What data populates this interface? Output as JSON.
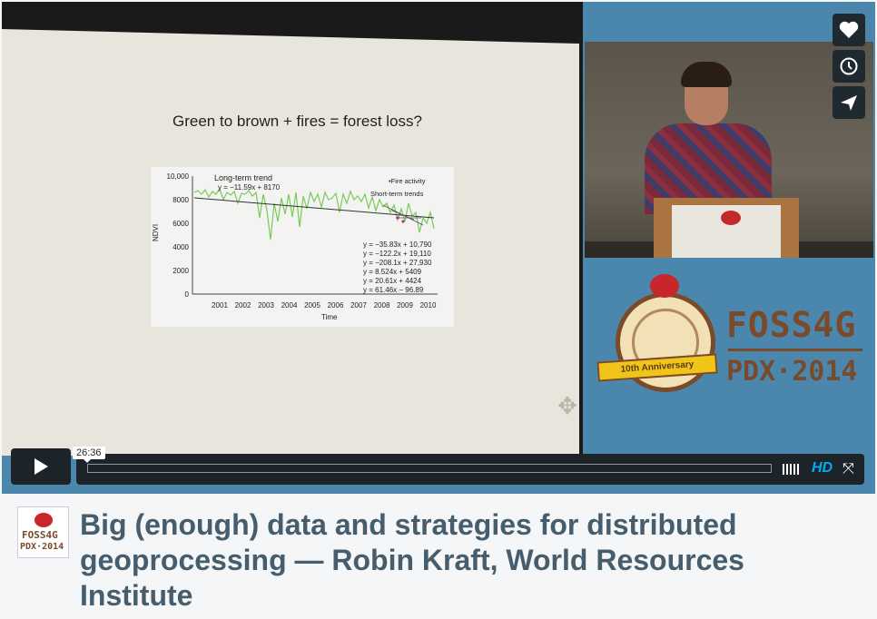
{
  "video": {
    "slide": {
      "title": "Green to brown + fires = forest loss?",
      "chart": {
        "y_ticks": [
          "10,000",
          "8000",
          "6000",
          "4000",
          "2000",
          "0"
        ],
        "x_ticks": [
          "2001",
          "2002",
          "2003",
          "2004",
          "2005",
          "2006",
          "2007",
          "2008",
          "2009",
          "2010"
        ],
        "ylabel": "NDVI",
        "xlabel": "Time",
        "legend_long": "Long-term trend",
        "long_eq": "y = −11.59x + 8170",
        "legend_fire": "•Fire activity",
        "legend_short": "Short-term trends",
        "short_eqs": [
          "y = −35.83x + 10,790",
          "y = −122.2x + 19,110",
          "y = −208.1x + 27,930",
          "y = 8.524x + 5409",
          "y = 20.61x + 4424",
          "y = 61.46x − 96.89"
        ]
      }
    },
    "logo": {
      "ribbon": "10th Anniversary",
      "line1": "FOSS4G",
      "line2": "PDX·2014"
    },
    "side_buttons": [
      "heart-icon",
      "clock-icon",
      "send-icon"
    ],
    "controls": {
      "timecode": "26:36",
      "progress": 0.0,
      "hd_label": "HD"
    },
    "colors": {
      "background": "#4b87ad",
      "controls": "#1c2429",
      "hd": "#00adef",
      "logo_brown": "#7a4a2a",
      "title": "#465d6e"
    }
  },
  "caption": {
    "logo_line1": "FOSS4G",
    "logo_line2": "PDX·2014",
    "title": "Big (enough) data and strategies for distributed geoprocessing — Robin Kraft, World Resources Institute"
  }
}
